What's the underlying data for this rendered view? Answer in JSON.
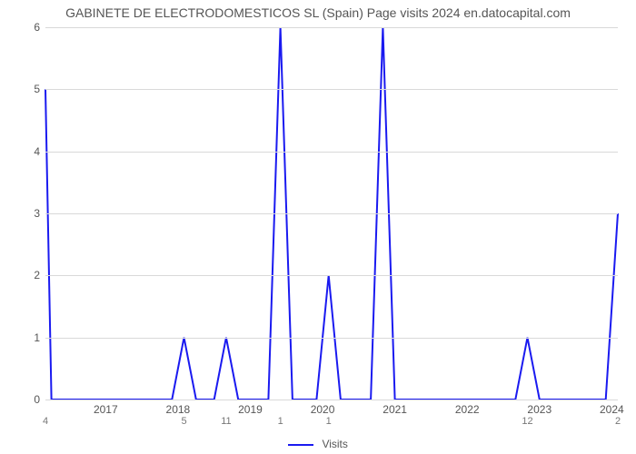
{
  "chart": {
    "type": "line",
    "title": "GABINETE DE ELECTRODOMESTICOS SL (Spain) Page visits 2024 en.datocapital.com",
    "title_fontsize": 14,
    "title_color": "#555555",
    "background_color": "#ffffff",
    "grid_color": "#d9d9d9",
    "line_color": "#1a1af0",
    "line_width": 2,
    "fill_color": "none",
    "yaxis": {
      "min": 0,
      "max": 6,
      "ticks": [
        0,
        1,
        2,
        3,
        4,
        5,
        6
      ],
      "label_fontsize": 12,
      "label_color": "#555555"
    },
    "xaxis": {
      "domain_min": 0,
      "domain_max": 95,
      "year_labels": [
        {
          "text": "2017",
          "x": 10
        },
        {
          "text": "2018",
          "x": 22
        },
        {
          "text": "2019",
          "x": 34
        },
        {
          "text": "2020",
          "x": 46
        },
        {
          "text": "2021",
          "x": 58
        },
        {
          "text": "2022",
          "x": 70
        },
        {
          "text": "2023",
          "x": 82
        },
        {
          "text": "2024",
          "x": 94
        }
      ],
      "value_labels": [
        {
          "text": "4",
          "x": 0
        },
        {
          "text": "5",
          "x": 23
        },
        {
          "text": "11",
          "x": 30
        },
        {
          "text": "1",
          "x": 39
        },
        {
          "text": "1",
          "x": 47
        },
        {
          "text": "12",
          "x": 80
        },
        {
          "text": "2",
          "x": 95
        }
      ],
      "label_fontsize": 12,
      "label_color": "#555555",
      "value_label_fontsize": 11,
      "value_label_color": "#777777"
    },
    "series": [
      {
        "name": "Visits",
        "points": [
          {
            "x": 0,
            "y": 5
          },
          {
            "x": 1,
            "y": 0
          },
          {
            "x": 21,
            "y": 0
          },
          {
            "x": 23,
            "y": 1
          },
          {
            "x": 25,
            "y": 0
          },
          {
            "x": 28,
            "y": 0
          },
          {
            "x": 30,
            "y": 1
          },
          {
            "x": 32,
            "y": 0
          },
          {
            "x": 37,
            "y": 0
          },
          {
            "x": 39,
            "y": 6
          },
          {
            "x": 41,
            "y": 0
          },
          {
            "x": 45,
            "y": 0
          },
          {
            "x": 47,
            "y": 2
          },
          {
            "x": 49,
            "y": 0
          },
          {
            "x": 54,
            "y": 0
          },
          {
            "x": 56,
            "y": 6
          },
          {
            "x": 58,
            "y": 0
          },
          {
            "x": 78,
            "y": 0
          },
          {
            "x": 80,
            "y": 1
          },
          {
            "x": 82,
            "y": 0
          },
          {
            "x": 93,
            "y": 0
          },
          {
            "x": 95,
            "y": 3
          }
        ]
      }
    ],
    "legend": {
      "label": "Visits",
      "color": "#1a1af0",
      "fontsize": 12
    }
  }
}
